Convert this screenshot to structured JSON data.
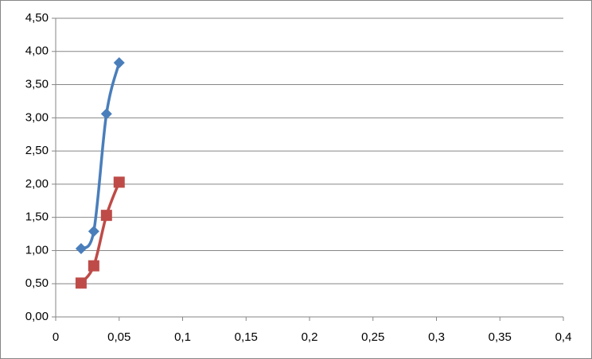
{
  "chart_data": {
    "type": "scatter",
    "x": [
      0.02,
      0.03,
      0.04,
      0.05
    ],
    "series": [
      {
        "color": "#4a7ebb",
        "marker": "diamond",
        "values": [
          1.03,
          1.29,
          3.06,
          3.83
        ]
      },
      {
        "color": "#be4b48",
        "marker": "square",
        "values": [
          0.51,
          0.77,
          1.53,
          2.03
        ]
      }
    ],
    "smooth": true,
    "xlim": [
      0,
      0.4
    ],
    "xticks": [
      0,
      {
        "value": 0.05,
        "label": "0,05"
      },
      {
        "value": 0.1,
        "label": "0,1"
      },
      {
        "value": 0.15,
        "label": "0,15"
      },
      {
        "value": 0.2,
        "label": "0,2"
      },
      {
        "value": 0.25,
        "label": "0,25"
      },
      {
        "value": 0.3,
        "label": "0,3"
      },
      {
        "value": 0.35,
        "label": "0,35"
      },
      {
        "value": 0.4,
        "label": "0,4"
      }
    ],
    "ylim": [
      0,
      4.5
    ],
    "yticks": [
      {
        "value": 0,
        "label": "0,00"
      },
      {
        "value": 0.5,
        "label": "0,50"
      },
      {
        "value": 1,
        "label": "1,00"
      },
      {
        "value": 1.5,
        "label": "1,50"
      },
      {
        "value": 2,
        "label": "2,00"
      },
      {
        "value": 2.5,
        "label": "2,50"
      },
      {
        "value": 3,
        "label": "3,00"
      },
      {
        "value": 3.5,
        "label": "3,50"
      },
      {
        "value": 4,
        "label": "4,00"
      },
      {
        "value": 4.5,
        "label": "4,50"
      }
    ],
    "grid": true
  }
}
